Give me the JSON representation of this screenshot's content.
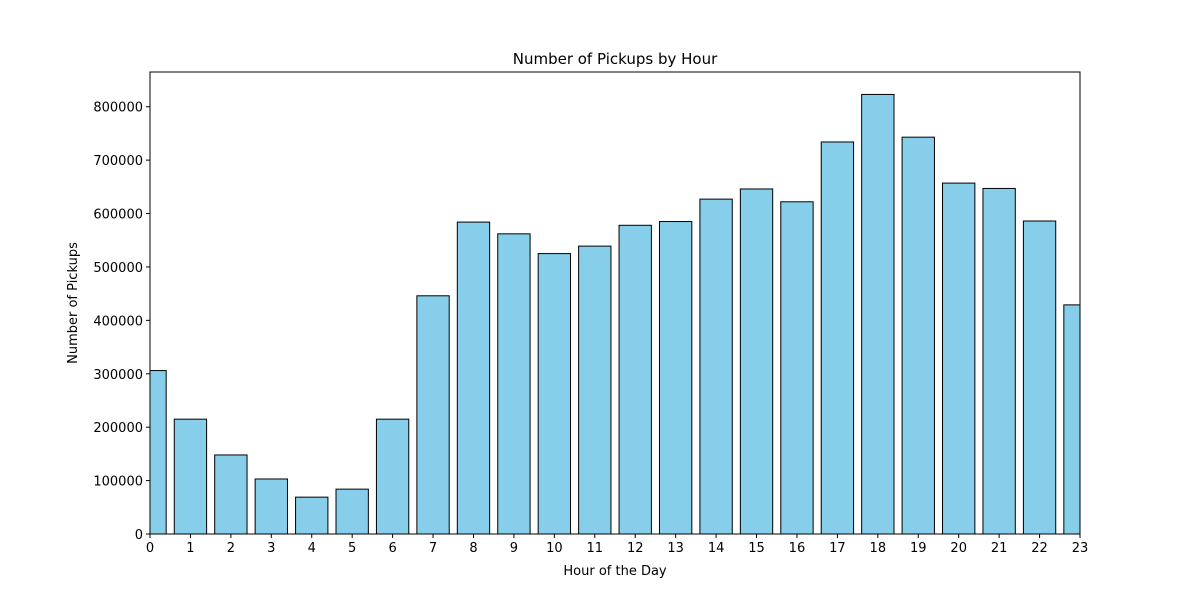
{
  "chart_data": {
    "type": "bar",
    "title": "Number of Pickups by Hour",
    "xlabel": "Hour of the Day",
    "ylabel": "Number of Pickups",
    "categories": [
      "0",
      "1",
      "2",
      "3",
      "4",
      "5",
      "6",
      "7",
      "8",
      "9",
      "10",
      "11",
      "12",
      "13",
      "14",
      "15",
      "16",
      "17",
      "18",
      "19",
      "20",
      "21",
      "22",
      "23"
    ],
    "values": [
      306000,
      215000,
      148000,
      103000,
      69000,
      84000,
      215000,
      446000,
      584000,
      562000,
      525000,
      539000,
      578000,
      585000,
      627000,
      646000,
      622000,
      734000,
      823000,
      743000,
      657000,
      647000,
      586000,
      429000
    ],
    "xlim": [
      0,
      23
    ],
    "ylim": [
      0,
      865000
    ],
    "yticks": [
      0,
      100000,
      200000,
      300000,
      400000,
      500000,
      600000,
      700000,
      800000
    ],
    "ytick_labels": [
      "0",
      "100000",
      "200000",
      "300000",
      "400000",
      "500000",
      "600000",
      "700000",
      "800000"
    ],
    "grid": false,
    "bar_color": "#87CEEB",
    "edge_color": "#000000"
  }
}
